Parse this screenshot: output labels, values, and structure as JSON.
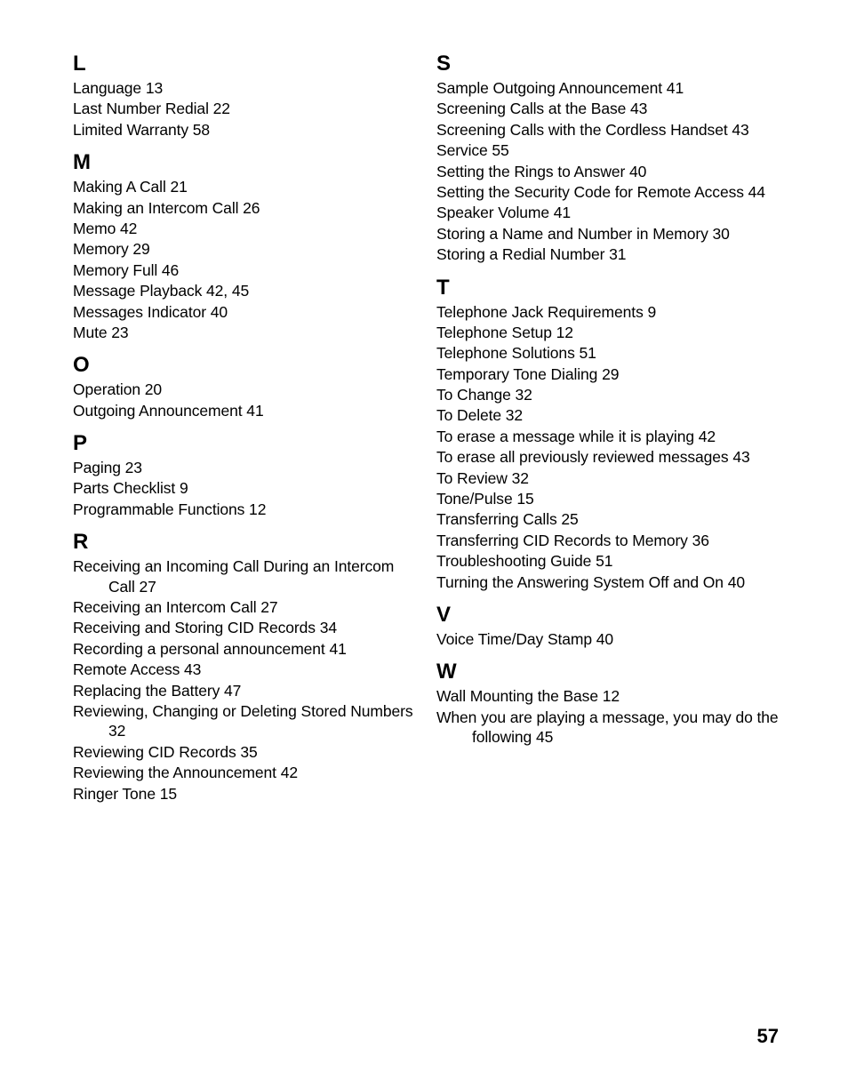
{
  "page_number": "57",
  "left_column": [
    {
      "letter": "L",
      "entries": [
        "Language  13",
        "Last Number Redial  22",
        "Limited Warranty  58"
      ]
    },
    {
      "letter": "M",
      "entries": [
        "Making A Call  21",
        "Making an Intercom Call  26",
        "Memo  42",
        "Memory  29",
        "Memory Full  46",
        "Message Playback  42,  45",
        "Messages Indicator  40",
        "Mute  23"
      ]
    },
    {
      "letter": "O",
      "entries": [
        "Operation  20",
        "Outgoing Announcement  41"
      ]
    },
    {
      "letter": "P",
      "entries": [
        "Paging  23",
        "Parts Checklist  9",
        "Programmable Functions  12"
      ]
    },
    {
      "letter": "R",
      "entries": [
        "Receiving an Incoming Call During an Intercom Call  27",
        "Receiving an Intercom Call  27",
        "Receiving and Storing CID Records  34",
        "Recording a personal announcement  41",
        "Remote Access  43",
        "Replacing the Battery  47",
        "Reviewing, Changing or Deleting Stored Numbers  32",
        "Reviewing CID Records  35",
        "Reviewing the Announcement  42",
        "Ringer Tone  15"
      ]
    }
  ],
  "right_column": [
    {
      "letter": "S",
      "entries": [
        "Sample Outgoing Announcement  41",
        "Screening Calls at the Base  43",
        "Screening Calls with the Cordless Handset  43",
        "Service  55",
        "Setting the Rings to Answer  40",
        "Setting the Security Code for Remote Access  44",
        "Speaker Volume  41",
        "Storing a Name and Number in Memory  30",
        "Storing a Redial Number  31"
      ]
    },
    {
      "letter": "T",
      "entries": [
        "Telephone Jack Requirements  9",
        "Telephone Setup  12",
        "Telephone Solutions  51",
        "Temporary Tone Dialing  29",
        "To Change  32",
        "To Delete  32",
        "To erase a message while it is playing  42",
        "To erase all previously reviewed messages  43",
        "To Review  32",
        "Tone/Pulse  15",
        "Transferring Calls  25",
        "Transferring CID Records to Memory  36",
        "Troubleshooting Guide  51",
        "Turning the Answering System Off and On  40"
      ]
    },
    {
      "letter": "V",
      "entries": [
        "Voice Time/Day Stamp  40"
      ]
    },
    {
      "letter": "W",
      "entries": [
        "Wall Mounting the Base  12",
        "When you are playing a message, you may do the following  45"
      ]
    }
  ]
}
